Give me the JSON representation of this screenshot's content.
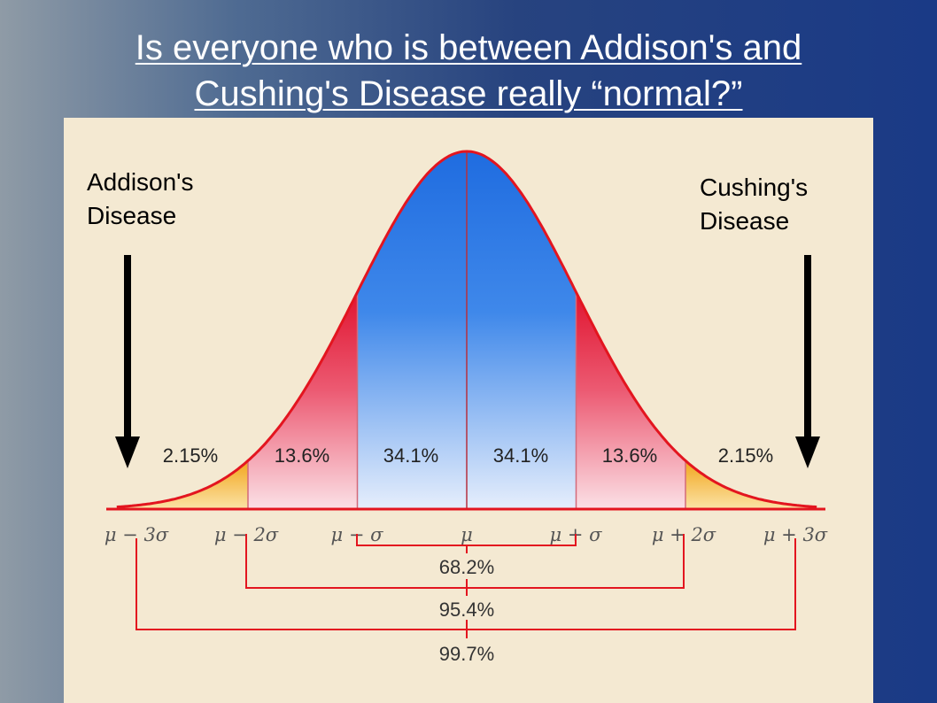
{
  "title": {
    "line1": "Is everyone who is between Addison's and",
    "line2": "Cushing's Disease really “normal?”"
  },
  "labels": {
    "left_line1": "Addison's",
    "left_line2": "Disease",
    "right_line1": "Cushing's",
    "right_line2": "Disease"
  },
  "colors": {
    "accent_blue": "#2f78e6",
    "accent_red": "#e8203a",
    "tail_yellow": "#f3b63a",
    "curve": "#e3151f"
  },
  "chart_data": {
    "type": "area",
    "region_percents": [
      "2.15%",
      "13.6%",
      "34.1%",
      "34.1%",
      "13.6%",
      "2.15%"
    ],
    "tick_labels": [
      "μ − 3σ",
      "μ − 2σ",
      "μ − σ",
      "μ",
      "μ + σ",
      "μ + 2σ",
      "μ + 3σ"
    ],
    "bracket_labels": [
      "68.2%",
      "95.4%",
      "99.7%"
    ],
    "x_range": [
      -3.2,
      3.2
    ]
  }
}
